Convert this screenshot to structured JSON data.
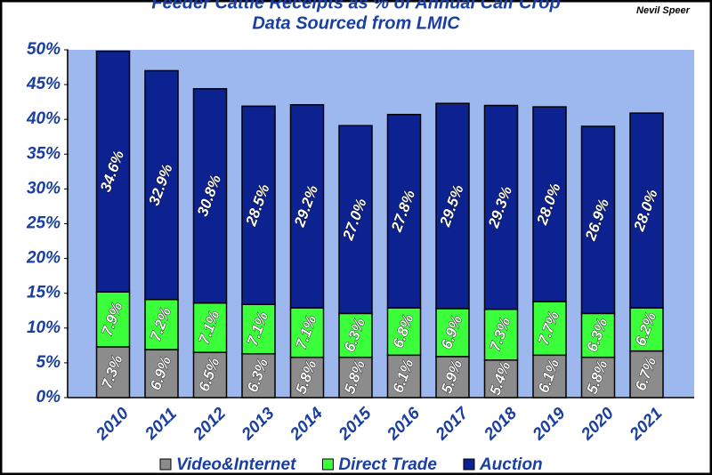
{
  "chart_data": {
    "type": "stacked-bar",
    "title": "Feeder Cattle Receipts as % of Annual Calf Crop",
    "subtitle": "Data Sourced from LMIC",
    "author": "Nevil Speer",
    "categories": [
      "2010",
      "2011",
      "2012",
      "2013",
      "2014",
      "2015",
      "2016",
      "2017",
      "2018",
      "2019",
      "2020",
      "2021"
    ],
    "series": [
      {
        "name": "Video&Internet",
        "color": "#8c8c8c",
        "values": [
          7.3,
          6.9,
          6.5,
          6.3,
          5.8,
          5.8,
          6.1,
          5.9,
          5.4,
          6.1,
          5.8,
          6.7
        ],
        "value_labels": [
          "7.3%",
          "6.9%",
          "6.5%",
          "6.3%",
          "5.8%",
          "5.8%",
          "6.1%",
          "5.9%",
          "5.4%",
          "6.1%",
          "5.8%",
          "6.7%"
        ]
      },
      {
        "name": "Direct Trade",
        "color": "#3cff3c",
        "values": [
          7.9,
          7.2,
          7.1,
          7.1,
          7.1,
          6.3,
          6.8,
          6.9,
          7.3,
          7.7,
          6.3,
          6.2
        ],
        "value_labels": [
          "7.9%",
          "7.2%",
          "7.1%",
          "7.1%",
          "7.1%",
          "6.3%",
          "6.8%",
          "6.9%",
          "7.3%",
          "7.7%",
          "6.3%",
          "6.2%"
        ]
      },
      {
        "name": "Auction",
        "color": "#0c2290",
        "values": [
          34.6,
          32.9,
          30.8,
          28.5,
          29.2,
          27.0,
          27.8,
          29.5,
          29.3,
          28.0,
          26.9,
          28.0
        ],
        "value_labels": [
          "34.6%",
          "32.9%",
          "30.8%",
          "28.5%",
          "29.2%",
          "27.0%",
          "27.8%",
          "29.5%",
          "29.3%",
          "28.0%",
          "26.9%",
          "28.0%"
        ]
      }
    ],
    "ylim": [
      0,
      50
    ],
    "yticks": [
      {
        "value": 0,
        "label": "0%"
      },
      {
        "value": 5,
        "label": "5%"
      },
      {
        "value": 10,
        "label": "10%"
      },
      {
        "value": 15,
        "label": "15%"
      },
      {
        "value": 20,
        "label": "20%"
      },
      {
        "value": 25,
        "label": "25%"
      },
      {
        "value": 30,
        "label": "30%"
      },
      {
        "value": 35,
        "label": "35%"
      },
      {
        "value": 40,
        "label": "40%"
      },
      {
        "value": 45,
        "label": "45%"
      },
      {
        "value": 50,
        "label": "50%"
      }
    ],
    "legend": "bottom"
  }
}
